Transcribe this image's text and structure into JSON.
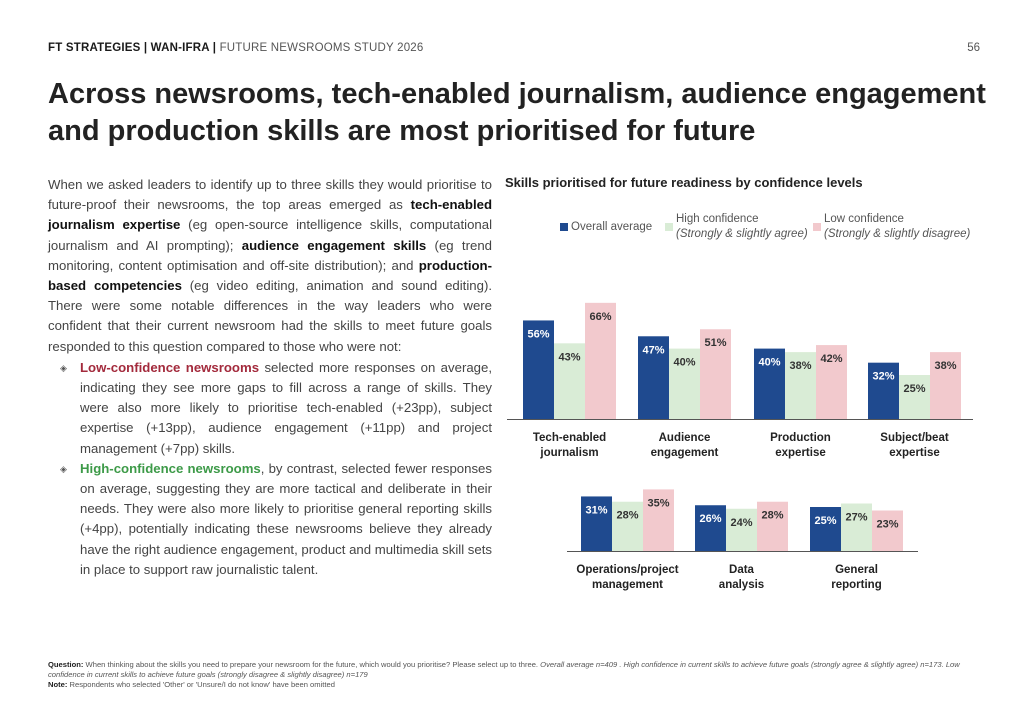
{
  "header": {
    "org": "FT STRATEGIES | WAN-IFRA |",
    "study": "FUTURE NEWSROOMS STUDY 2026",
    "page": "56"
  },
  "title": "Across newsrooms, tech-enabled journalism, audience engagement and production skills are most prioritised for future",
  "body": {
    "p1": "When we asked leaders to identify up to three skills they would prioritise to future-proof their newsrooms, the top areas emerged as ",
    "b1": "tech-enabled journalism expertise",
    "p2": " (eg open-source intelligence skills, computational journalism and AI prompting); ",
    "b2": "audience engagement skills",
    "p3": " (eg trend monitoring, content optimisation and off-site distribution); and ",
    "b3": "production-based competencies",
    "p4": " (eg video editing, animation and sound editing). There were some notable differences in the way leaders who were confident that their current newsroom had the skills to meet future goals responded to this question compared to those who were not:",
    "bullet1_head": "Low-confidence newsrooms",
    "bullet1_text": " selected more responses on average, indicating they see more gaps to fill across a range of skills. They were also more likely to prioritise tech-enabled (+23pp), subject expertise (+13pp), audience engagement (+11pp) and project management (+7pp) skills.",
    "bullet2_head": "High-confidence newsrooms",
    "bullet2_text": ", by contrast, selected fewer responses on average, suggesting they are more tactical and deliberate in their needs. They were also more likely to prioritise general reporting skills (+4pp), potentially indicating these newsrooms believe they already have the right audience engagement, product and multimedia skill sets in place to support raw journalistic talent."
  },
  "legend": {
    "overall": "Overall average",
    "high": "High confidence",
    "high_sub": "(Strongly & slightly agree)",
    "low": "Low confidence",
    "low_sub": "(Strongly & slightly disagree)"
  },
  "colors": {
    "overall": "#1f4a8f",
    "high": "#d9ecd6",
    "low": "#f2c9cd",
    "low_text": "#a32a3c",
    "high_text": "#3d9a48"
  },
  "chart_data": {
    "type": "bar",
    "title": "Skills prioritised for future readiness by confidence levels",
    "series_names": [
      "Overall average",
      "High confidence",
      "Low confidence"
    ],
    "categories": [
      "Tech-enabled journalism",
      "Audience engagement",
      "Production expertise",
      "Subject/beat expertise",
      "Operations/project management",
      "Data analysis",
      "General reporting"
    ],
    "series": [
      {
        "name": "Overall average",
        "values": [
          56,
          47,
          40,
          32,
          31,
          26,
          25
        ]
      },
      {
        "name": "High confidence",
        "values": [
          43,
          40,
          38,
          25,
          28,
          24,
          27
        ]
      },
      {
        "name": "Low confidence",
        "values": [
          66,
          51,
          42,
          38,
          35,
          28,
          23
        ]
      }
    ],
    "unit": "%"
  },
  "footnote": {
    "q_label": "Question:",
    "q_text": " When thinking about the skills you need to prepare your newsroom for the future, which would you prioritise? Please select up to three. ",
    "q_italic": "Overall average n=409 . High confidence in current skills to achieve future goals (strongly agree & slightly agree) n=173. Low confidence in current skills to achieve future goals (strongly disagree & slightly disagree) n=179",
    "note_label": "Note:",
    "note_text": " Respondents who selected 'Other' or 'Unsure/I do not know' have been omitted"
  }
}
